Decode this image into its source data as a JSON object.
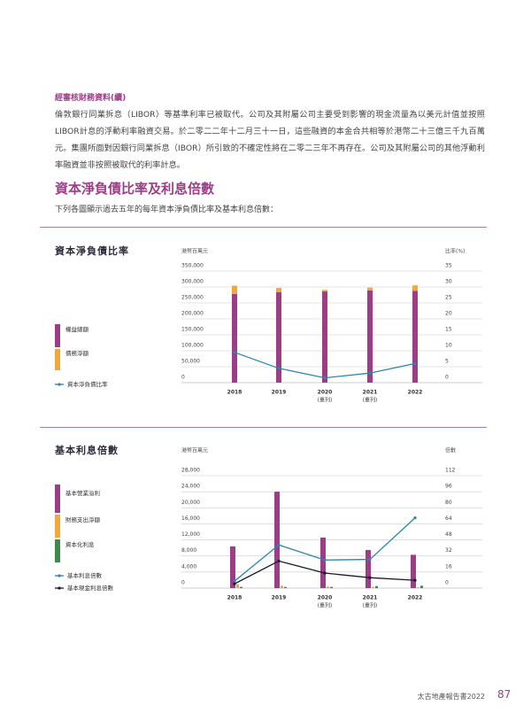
{
  "header": {
    "section_label": "經審核財務資料(續)"
  },
  "paragraph": "倫敦銀行同業拆息（LIBOR）等基準利率已被取代。公司及其附屬公司主要受到影響的現金流量為以美元計值並按照LIBOR計息的浮動利率融資交易。於二零二二年十二月三十一日，這些融資的本金合共相等於港幣二十三億三千九百萬元。集團所面對因銀行同業拆息（IBOR）所引致的不確定性將在二零二三年不再存在。公司及其附屬公司的其他浮動利率融資並非按照被取代的利率計息。",
  "section": {
    "title": "資本淨負債比率及利息倍數",
    "intro": "下列各圖顯示過去五年的每年資本淨負債比率及基本利息倍數："
  },
  "footer": {
    "report": "太古地產報告書2022",
    "page": "87"
  },
  "chart_data": [
    {
      "type": "bar",
      "title": "資本淨負債比率",
      "y_label": "港幣百萬元",
      "y2_label": "比率(%)",
      "stacked": true,
      "grid": true,
      "categories": [
        "2018",
        "2019",
        "2020",
        "2021",
        "2022"
      ],
      "category_notes": [
        null,
        null,
        "(重列)",
        "(重列)",
        null
      ],
      "ylim": [
        0,
        350000
      ],
      "yticks": [
        0,
        {
          "value": 50000,
          "label": "50,000"
        },
        {
          "value": 100000,
          "label": "100,000"
        },
        {
          "value": 150000,
          "label": "150,000"
        },
        {
          "value": 200000,
          "label": "200,000"
        },
        {
          "value": 250000,
          "label": "250,000"
        },
        {
          "value": 300000,
          "label": "300,000"
        },
        {
          "value": 350000,
          "label": "350,000"
        }
      ],
      "y2lim": [
        0,
        35
      ],
      "y2ticks": [
        0,
        5,
        10,
        15,
        20,
        25,
        30,
        35
      ],
      "series": [
        {
          "name": "權益總額",
          "type": "bar",
          "color": "#9c3d87",
          "values": [
            278000,
            284000,
            286000,
            289000,
            288000
          ]
        },
        {
          "name": "債務淨額",
          "type": "bar",
          "color": "#f2a93b",
          "values": [
            26000,
            13000,
            5000,
            9000,
            17000
          ]
        },
        {
          "name": "資本淨負債比率",
          "type": "line",
          "axis": "y2",
          "color": "#2a86b0",
          "values": [
            9.5,
            4.5,
            1.5,
            3.0,
            6.0
          ]
        }
      ]
    },
    {
      "type": "bar",
      "title": "基本利息倍數",
      "y_label": "港幣百萬元",
      "y2_label": "倍數",
      "stacked": false,
      "grid": true,
      "categories": [
        "2018",
        "2019",
        "2020",
        "2021",
        "2022"
      ],
      "category_notes": [
        null,
        null,
        "(重列)",
        "(重列)",
        null
      ],
      "ylim": [
        0,
        28000
      ],
      "yticks": [
        0,
        {
          "value": 4000,
          "label": "4,000"
        },
        {
          "value": 8000,
          "label": "8,000"
        },
        {
          "value": 12000,
          "label": "12,000"
        },
        {
          "value": 16000,
          "label": "16,000"
        },
        {
          "value": 20000,
          "label": "20,000"
        },
        {
          "value": 24000,
          "label": "24,000"
        },
        {
          "value": 28000,
          "label": "28,000"
        }
      ],
      "y2lim": [
        0,
        112
      ],
      "y2ticks": [
        0,
        16,
        32,
        48,
        64,
        80,
        96,
        112
      ],
      "series": [
        {
          "name": "基本營業溢利",
          "type": "bar",
          "color": "#9c3d87",
          "values": [
            10400,
            24000,
            12600,
            9500,
            8300
          ]
        },
        {
          "name": "財務支出淨額",
          "type": "bar",
          "color": "#f2a93b",
          "values": [
            1000,
            600,
            400,
            300,
            200
          ]
        },
        {
          "name": "資本化利息",
          "type": "bar",
          "color": "#3d8a4c",
          "values": [
            300,
            300,
            300,
            500,
            600
          ]
        },
        {
          "name": "基本利息倍數",
          "type": "line",
          "axis": "y2",
          "color": "#2a86b0",
          "values": [
            7,
            43,
            28,
            28.6,
            70
          ]
        },
        {
          "name": "基本現金利息倍數",
          "type": "line",
          "axis": "y2",
          "color": "#1a1a2e",
          "values": [
            4.3,
            27,
            15,
            10.4,
            7.8
          ]
        }
      ]
    }
  ]
}
